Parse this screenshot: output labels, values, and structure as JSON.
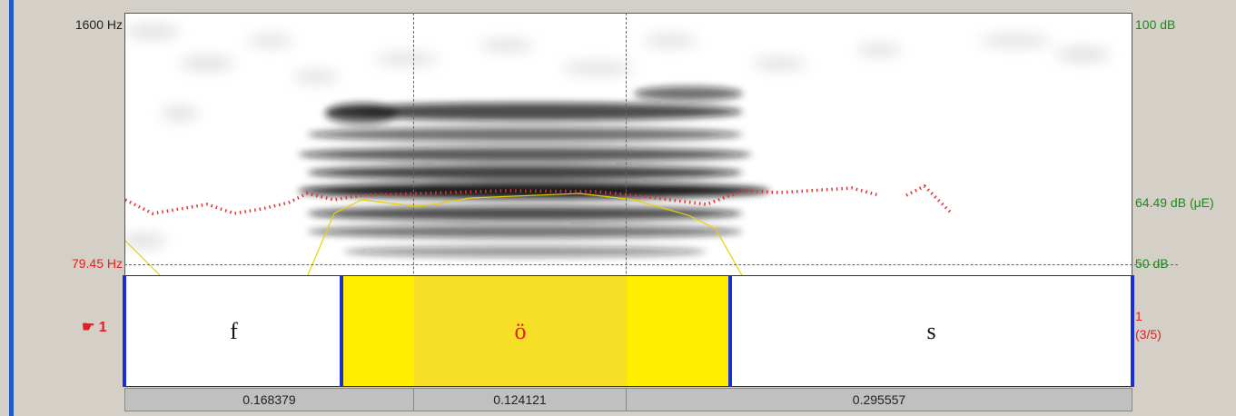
{
  "freq_axis": {
    "top_label": "1600 Hz",
    "pitch_label": "79.45 Hz"
  },
  "db_axis": {
    "top_label": "100 dB",
    "mid_label": "64.49 dB (μE)",
    "bottom_label": "50 dB"
  },
  "tier": {
    "label": "☛ 1",
    "name": "1",
    "position": "(3/5)",
    "intervals": [
      {
        "text": "f",
        "selected": false
      },
      {
        "text": "ö",
        "selected": true
      },
      {
        "text": "s",
        "selected": false
      }
    ]
  },
  "durations": [
    "0.168379",
    "0.124121",
    "0.295557"
  ],
  "colors": {
    "pitch": "#e23232",
    "intensity": "#e8d200",
    "selection": "#ffee00",
    "boundary": "#1b2fd0"
  }
}
